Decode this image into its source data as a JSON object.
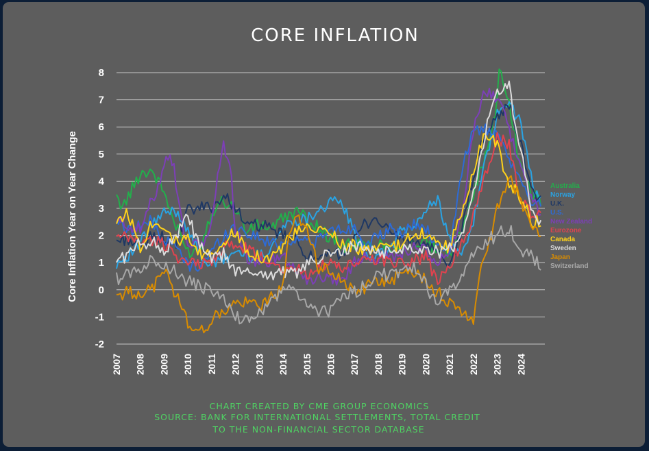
{
  "colors": {
    "background": "#5d5d5d",
    "outer": "#0c1e36",
    "gridline": "#c8c8c8",
    "footnote": "#4fd463"
  },
  "chart_data": {
    "type": "line",
    "title": "CORE INFLATION",
    "xlabel": "",
    "ylabel": "Core Inflation Year on Year Change",
    "ylim": [
      -2,
      8
    ],
    "yticks": [
      "8",
      "7",
      "6",
      "5",
      "4",
      "3",
      "2",
      "1",
      "0",
      "-1",
      "-2"
    ],
    "xlim": [
      2007,
      2025
    ],
    "xticks": [
      "2007",
      "2008",
      "2009",
      "2010",
      "2011",
      "2012",
      "2013",
      "2014",
      "2015",
      "2016",
      "2017",
      "2018",
      "2019",
      "2020",
      "2021",
      "2022",
      "2023",
      "2024"
    ],
    "grid": true,
    "legend_position": "right",
    "footnote": [
      "CHART CREATED BY CME GROUP ECONOMICS",
      "SOURCE: BANK FOR INTERNATIONAL SETTLEMENTS, TOTAL CREDIT",
      "TO THE NON-FINANCIAL SECTOR DATABASE"
    ],
    "series": [
      {
        "name": "Australia",
        "color": "#22b04b",
        "x": [
          2007.0,
          2007.3,
          2008.0,
          2008.5,
          2009.0,
          2009.5,
          2010.0,
          2010.5,
          2011.0,
          2011.5,
          2012.0,
          2012.5,
          2013.0,
          2013.5,
          2014.0,
          2014.5,
          2015.0,
          2015.5,
          2016.0,
          2016.5,
          2017.0,
          2017.5,
          2018.0,
          2018.5,
          2019.0,
          2019.5,
          2020.0,
          2020.5,
          2021.0,
          2021.5,
          2022.0,
          2022.5,
          2022.9,
          2023.1,
          2023.5,
          2024.0,
          2024.5,
          2024.9
        ],
        "values": [
          3.3,
          3.1,
          4.3,
          4.4,
          3.6,
          2.3,
          1.4,
          1.5,
          2.9,
          3.3,
          3.0,
          2.1,
          2.4,
          2.3,
          2.6,
          2.9,
          2.6,
          2.3,
          1.9,
          1.6,
          1.7,
          1.6,
          1.7,
          1.6,
          1.6,
          1.7,
          1.7,
          1.4,
          1.3,
          2.3,
          3.6,
          4.9,
          6.3,
          8.3,
          6.8,
          4.4,
          3.5,
          3.3
        ]
      },
      {
        "name": "Norway",
        "color": "#2aa3e3",
        "x": [
          2007.0,
          2007.5,
          2008.0,
          2008.5,
          2009.0,
          2009.5,
          2010.0,
          2010.5,
          2011.0,
          2011.5,
          2012.0,
          2012.5,
          2013.0,
          2013.5,
          2014.0,
          2014.5,
          2015.0,
          2015.5,
          2016.0,
          2016.5,
          2017.0,
          2017.5,
          2018.0,
          2018.5,
          2019.0,
          2019.5,
          2020.0,
          2020.5,
          2021.0,
          2021.5,
          2022.0,
          2022.5,
          2023.0,
          2023.5,
          2024.0,
          2024.5,
          2024.9
        ],
        "values": [
          1.0,
          1.3,
          1.7,
          2.4,
          2.8,
          2.9,
          2.3,
          1.3,
          0.9,
          1.1,
          1.4,
          1.3,
          1.2,
          1.6,
          2.3,
          2.6,
          2.6,
          3.0,
          3.2,
          3.2,
          2.0,
          1.3,
          1.2,
          1.5,
          2.2,
          2.3,
          2.9,
          3.4,
          1.8,
          1.2,
          2.6,
          4.7,
          6.4,
          6.9,
          6.1,
          3.8,
          3.1
        ]
      },
      {
        "name": "U.K.",
        "color": "#1f3864",
        "x": [
          2007.0,
          2007.5,
          2008.0,
          2008.5,
          2009.0,
          2009.5,
          2010.0,
          2010.5,
          2011.0,
          2011.5,
          2012.0,
          2012.5,
          2013.0,
          2013.5,
          2014.0,
          2014.5,
          2015.0,
          2015.5,
          2016.0,
          2016.5,
          2017.0,
          2017.5,
          2018.0,
          2018.5,
          2019.0,
          2019.5,
          2020.0,
          2020.5,
          2021.0,
          2021.5,
          2022.0,
          2022.5,
          2023.0,
          2023.5,
          2024.0,
          2024.5,
          2024.9
        ],
        "values": [
          1.8,
          1.9,
          1.5,
          2.0,
          1.9,
          1.7,
          2.9,
          3.0,
          3.1,
          3.4,
          3.1,
          2.3,
          2.4,
          2.2,
          2.0,
          1.8,
          1.3,
          1.0,
          1.3,
          1.4,
          1.8,
          2.5,
          2.6,
          2.1,
          1.9,
          1.7,
          1.7,
          1.3,
          0.8,
          2.2,
          4.2,
          5.8,
          6.3,
          6.9,
          5.3,
          3.6,
          3.2
        ]
      },
      {
        "name": "U.S.",
        "color": "#2e6bd6",
        "x": [
          2007.0,
          2007.5,
          2008.0,
          2008.5,
          2009.0,
          2009.5,
          2010.0,
          2010.5,
          2011.0,
          2011.5,
          2012.0,
          2012.5,
          2013.0,
          2013.5,
          2014.0,
          2014.5,
          2015.0,
          2015.5,
          2016.0,
          2016.5,
          2017.0,
          2017.5,
          2018.0,
          2018.5,
          2019.0,
          2019.5,
          2020.0,
          2020.5,
          2021.0,
          2021.5,
          2022.0,
          2022.5,
          2023.0,
          2023.5,
          2024.0,
          2024.5,
          2024.9
        ],
        "values": [
          2.6,
          2.2,
          2.4,
          2.5,
          1.8,
          1.6,
          0.9,
          0.9,
          1.4,
          2.0,
          2.3,
          2.1,
          1.9,
          1.7,
          1.7,
          1.9,
          1.8,
          1.8,
          2.2,
          2.2,
          2.3,
          1.7,
          1.9,
          2.2,
          2.1,
          2.4,
          2.3,
          1.5,
          1.5,
          4.4,
          5.9,
          5.9,
          5.6,
          4.8,
          3.9,
          3.2,
          3.3
        ]
      },
      {
        "name": "New Zealand",
        "color": "#7d3fb8",
        "x": [
          2007.0,
          2007.5,
          2008.0,
          2008.5,
          2008.8,
          2009.1,
          2009.4,
          2009.8,
          2010.0,
          2010.5,
          2011.0,
          2011.3,
          2011.5,
          2011.8,
          2012.0,
          2012.5,
          2013.0,
          2013.5,
          2014.0,
          2014.5,
          2015.0,
          2015.5,
          2016.0,
          2016.5,
          2017.0,
          2017.5,
          2018.0,
          2018.5,
          2019.0,
          2019.5,
          2020.0,
          2020.5,
          2021.0,
          2021.5,
          2022.0,
          2022.4,
          2022.8,
          2023.1,
          2023.5,
          2024.0,
          2024.5,
          2024.9
        ],
        "values": [
          2.5,
          2.4,
          2.2,
          3.3,
          4.0,
          5.1,
          4.6,
          2.1,
          1.8,
          1.5,
          2.4,
          4.6,
          5.3,
          4.4,
          2.2,
          1.2,
          0.9,
          1.1,
          1.3,
          0.8,
          0.4,
          0.4,
          0.5,
          0.3,
          1.0,
          1.3,
          1.2,
          1.2,
          1.4,
          1.6,
          1.4,
          1.0,
          1.4,
          2.6,
          5.9,
          7.3,
          7.2,
          7.1,
          5.9,
          4.5,
          3.3,
          2.5
        ]
      },
      {
        "name": "Eurozone",
        "color": "#e0434f",
        "x": [
          2007.0,
          2007.5,
          2008.0,
          2008.5,
          2009.0,
          2009.5,
          2010.0,
          2010.5,
          2011.0,
          2011.5,
          2012.0,
          2012.5,
          2013.0,
          2013.5,
          2014.0,
          2014.5,
          2015.0,
          2015.5,
          2016.0,
          2016.5,
          2017.0,
          2017.5,
          2018.0,
          2018.5,
          2019.0,
          2019.5,
          2020.0,
          2020.5,
          2021.0,
          2021.5,
          2022.0,
          2022.5,
          2023.0,
          2023.5,
          2024.0,
          2024.5,
          2024.9
        ],
        "values": [
          1.9,
          1.9,
          1.8,
          1.8,
          1.7,
          1.3,
          0.9,
          1.0,
          1.0,
          1.6,
          1.6,
          1.5,
          1.2,
          1.1,
          0.8,
          0.8,
          0.6,
          0.9,
          0.9,
          0.8,
          0.9,
          1.2,
          1.1,
          1.1,
          1.0,
          1.1,
          1.2,
          0.3,
          0.9,
          1.7,
          2.7,
          4.3,
          5.6,
          5.3,
          3.2,
          2.8,
          2.7
        ]
      },
      {
        "name": "Canada",
        "color": "#ffd21a",
        "x": [
          2007.0,
          2007.5,
          2008.0,
          2008.5,
          2009.0,
          2009.5,
          2010.0,
          2010.5,
          2011.0,
          2011.5,
          2012.0,
          2012.5,
          2013.0,
          2013.5,
          2014.0,
          2014.5,
          2015.0,
          2015.5,
          2016.0,
          2016.5,
          2017.0,
          2017.5,
          2018.0,
          2018.5,
          2019.0,
          2019.5,
          2020.0,
          2020.5,
          2021.0,
          2021.5,
          2022.0,
          2022.5,
          2023.0,
          2023.5,
          2024.0,
          2024.5,
          2024.9
        ],
        "values": [
          2.6,
          2.8,
          1.6,
          2.5,
          2.4,
          1.8,
          1.8,
          1.3,
          1.3,
          1.8,
          2.1,
          1.5,
          1.2,
          1.2,
          1.6,
          2.1,
          2.2,
          2.2,
          2.1,
          1.7,
          1.6,
          1.4,
          1.5,
          1.6,
          1.6,
          2.1,
          2.1,
          1.6,
          1.6,
          2.8,
          4.4,
          5.8,
          5.3,
          3.9,
          3.4,
          2.5,
          2.5
        ]
      },
      {
        "name": "Sweden",
        "color": "#dcdcdc",
        "x": [
          2007.0,
          2007.5,
          2008.0,
          2008.5,
          2009.0,
          2009.5,
          2010.0,
          2010.5,
          2011.0,
          2011.5,
          2012.0,
          2012.5,
          2013.0,
          2013.5,
          2014.0,
          2014.5,
          2015.0,
          2015.5,
          2016.0,
          2016.5,
          2017.0,
          2017.5,
          2018.0,
          2018.5,
          2019.0,
          2019.5,
          2020.0,
          2020.5,
          2021.0,
          2021.5,
          2022.0,
          2022.5,
          2023.0,
          2023.5,
          2024.0,
          2024.5,
          2024.9
        ],
        "values": [
          1.1,
          1.3,
          1.7,
          1.8,
          1.4,
          2.0,
          2.7,
          1.6,
          1.1,
          1.3,
          0.7,
          0.6,
          0.7,
          0.5,
          0.7,
          0.6,
          0.9,
          1.2,
          1.3,
          1.4,
          1.6,
          1.5,
          1.4,
          1.4,
          1.5,
          1.6,
          1.5,
          1.4,
          1.5,
          1.9,
          3.6,
          5.8,
          7.3,
          7.5,
          5.0,
          2.8,
          2.3
        ]
      },
      {
        "name": "Japan",
        "color": "#d98c00",
        "x": [
          2007.0,
          2007.5,
          2008.0,
          2008.5,
          2009.0,
          2009.5,
          2010.0,
          2010.5,
          2011.0,
          2011.5,
          2012.0,
          2012.5,
          2013.0,
          2013.5,
          2014.0,
          2014.3,
          2014.6,
          2015.0,
          2015.5,
          2016.0,
          2016.5,
          2017.0,
          2017.5,
          2018.0,
          2018.5,
          2019.0,
          2019.5,
          2020.0,
          2020.5,
          2021.0,
          2021.5,
          2022.0,
          2022.3,
          2022.7,
          2023.0,
          2023.5,
          2024.0,
          2024.5,
          2024.9
        ],
        "values": [
          -0.2,
          -0.1,
          -0.1,
          0.0,
          0.8,
          -0.2,
          -1.2,
          -1.6,
          -1.1,
          -0.8,
          -0.5,
          -0.5,
          -0.6,
          -0.3,
          0.1,
          2.3,
          2.9,
          2.1,
          0.8,
          0.7,
          0.3,
          0.0,
          0.1,
          0.3,
          0.4,
          0.5,
          0.7,
          0.4,
          -0.1,
          -0.5,
          -0.8,
          -1.1,
          0.8,
          1.8,
          3.0,
          4.2,
          3.3,
          2.1,
          2.2
        ]
      },
      {
        "name": "Switzerland",
        "color": "#a8a8a8",
        "x": [
          2007.0,
          2007.5,
          2008.0,
          2008.5,
          2009.0,
          2009.5,
          2010.0,
          2010.5,
          2011.0,
          2011.5,
          2012.0,
          2012.5,
          2013.0,
          2013.5,
          2014.0,
          2014.5,
          2015.0,
          2015.5,
          2016.0,
          2016.5,
          2017.0,
          2017.5,
          2018.0,
          2018.5,
          2019.0,
          2019.5,
          2020.0,
          2020.5,
          2021.0,
          2021.5,
          2022.0,
          2022.5,
          2023.0,
          2023.5,
          2024.0,
          2024.5,
          2024.9
        ],
        "values": [
          0.4,
          0.6,
          0.8,
          1.1,
          1.0,
          0.6,
          0.3,
          0.1,
          0.0,
          -0.4,
          -1.0,
          -1.1,
          -0.9,
          -0.5,
          0.1,
          -0.1,
          -0.5,
          -0.8,
          -0.8,
          -0.2,
          -0.1,
          0.2,
          0.6,
          0.5,
          0.6,
          0.8,
          0.2,
          -0.6,
          0.1,
          0.4,
          1.3,
          1.8,
          2.0,
          2.3,
          1.5,
          1.2,
          0.9
        ]
      }
    ]
  }
}
